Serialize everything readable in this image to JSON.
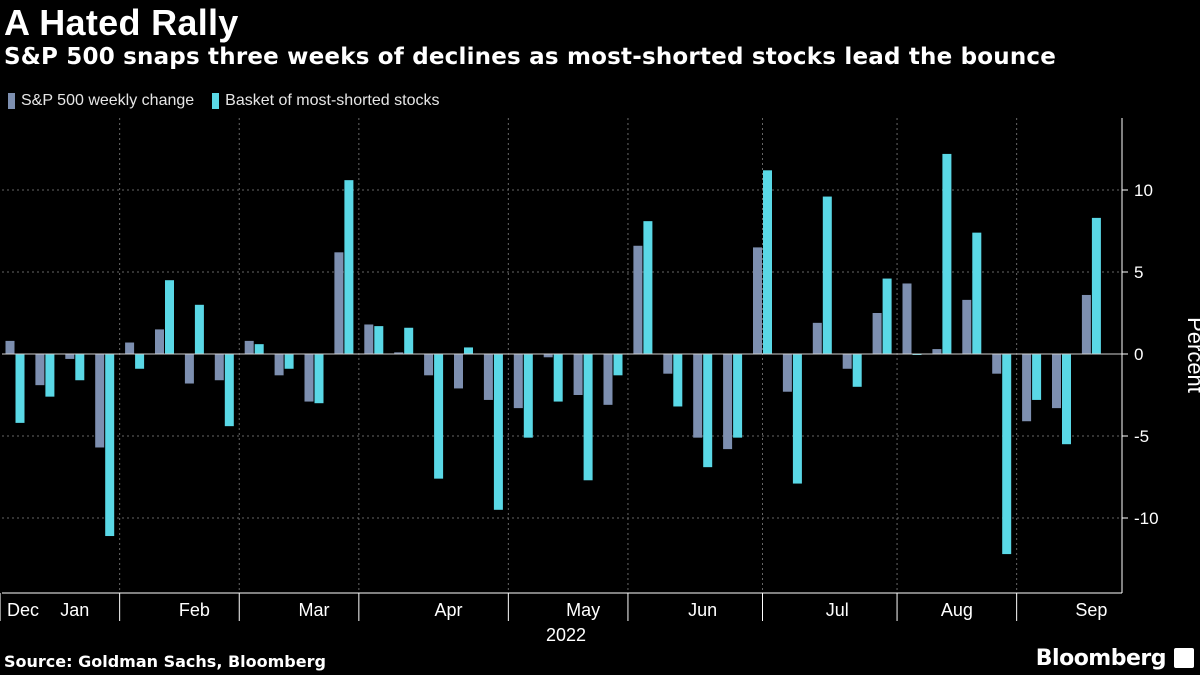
{
  "title": "A Hated Rally",
  "subtitle": "S&P 500 snaps three weeks of declines as most-shorted stocks lead the bounce",
  "source": "Source: Goldman Sachs, Bloomberg",
  "brand": "Bloomberg",
  "colors": {
    "sp500": "#7d8fb0",
    "basket": "#5ad8e6",
    "grid": "#666666",
    "axis": "#ffffff"
  },
  "chart_data": {
    "type": "bar",
    "ylabel": "Percent",
    "ylim": [
      -14,
      14
    ],
    "yticks": [
      -10,
      -5,
      0,
      5,
      10
    ],
    "ytick_labels": [
      "-10",
      "-5",
      "0",
      "5",
      "10"
    ],
    "year_label": "2022",
    "month_labels": [
      "Dec",
      "Jan",
      "Feb",
      "Mar",
      "Apr",
      "May",
      "Jun",
      "Jul",
      "Aug",
      "Sep"
    ],
    "month_label_weeks": [
      0,
      2,
      6,
      10,
      14.5,
      19,
      23,
      27.5,
      31.5,
      36
    ],
    "month_boundaries": [
      4,
      8,
      12,
      17,
      21,
      25.5,
      30,
      34
    ],
    "series": [
      {
        "name": "S&P 500 weekly change",
        "values": [
          0.8,
          -1.9,
          -0.3,
          -5.7,
          0.7,
          1.5,
          -1.8,
          -1.6,
          0.8,
          -1.3,
          -2.9,
          6.2,
          1.8,
          0.1,
          -1.3,
          -2.1,
          -2.8,
          -3.3,
          -0.2,
          -2.5,
          -3.1,
          6.6,
          -1.2,
          -5.1,
          -5.8,
          6.5,
          -2.3,
          1.9,
          -0.9,
          2.5,
          4.3,
          0.3,
          3.3,
          -1.2,
          -4.1,
          -3.3,
          3.6
        ]
      },
      {
        "name": "Basket of most-shorted stocks",
        "values": [
          -4.2,
          -2.6,
          -1.6,
          -11.1,
          -0.9,
          4.5,
          3.0,
          -4.4,
          0.6,
          -0.9,
          -3.0,
          10.6,
          1.7,
          1.6,
          -7.6,
          0.4,
          -9.5,
          -5.1,
          -2.9,
          -7.7,
          -1.3,
          8.1,
          -3.2,
          -6.9,
          -5.1,
          11.2,
          -7.9,
          9.6,
          -2.0,
          4.6,
          0.0,
          12.2,
          7.4,
          -12.2,
          -2.8,
          -5.5,
          8.3
        ]
      }
    ]
  }
}
